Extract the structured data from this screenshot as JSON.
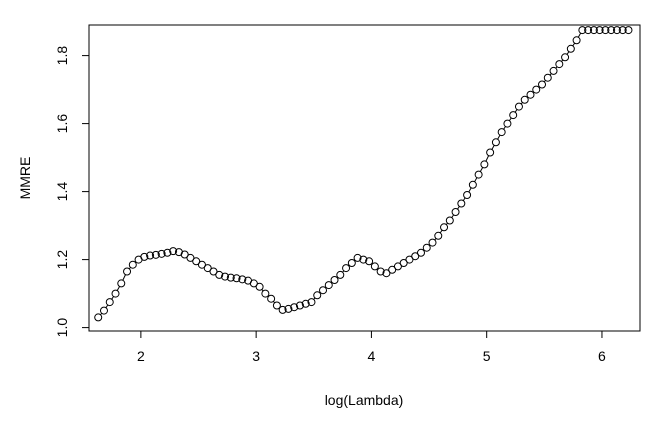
{
  "chart_data": {
    "type": "scatter",
    "title": "",
    "xlabel": "log(Lambda)",
    "ylabel": "MMRE",
    "xlim": [
      1.55,
      6.33
    ],
    "ylim": [
      0.99,
      1.89
    ],
    "grid": false,
    "legend": "none",
    "xticks": [
      2,
      3,
      4,
      5,
      6
    ],
    "yticks": [
      1.0,
      1.2,
      1.4,
      1.6,
      1.8
    ],
    "xtick_labels": [
      "2",
      "3",
      "4",
      "5",
      "6"
    ],
    "ytick_labels": [
      "1.0",
      "1.2",
      "1.4",
      "1.6",
      "1.8"
    ],
    "marker": "open-circle",
    "line": true,
    "colors": {
      "stroke": "#000000",
      "background": "#ffffff"
    },
    "x": [
      1.63,
      1.68,
      1.73,
      1.78,
      1.83,
      1.88,
      1.93,
      1.98,
      2.03,
      2.08,
      2.13,
      2.18,
      2.23,
      2.28,
      2.33,
      2.38,
      2.43,
      2.48,
      2.53,
      2.58,
      2.63,
      2.68,
      2.73,
      2.78,
      2.83,
      2.88,
      2.93,
      2.98,
      3.03,
      3.08,
      3.13,
      3.18,
      3.23,
      3.28,
      3.33,
      3.38,
      3.43,
      3.48,
      3.53,
      3.58,
      3.63,
      3.68,
      3.73,
      3.78,
      3.83,
      3.88,
      3.93,
      3.98,
      4.03,
      4.08,
      4.13,
      4.18,
      4.23,
      4.28,
      4.33,
      4.38,
      4.43,
      4.48,
      4.53,
      4.58,
      4.63,
      4.68,
      4.73,
      4.78,
      4.83,
      4.88,
      4.93,
      4.98,
      5.03,
      5.08,
      5.13,
      5.18,
      5.23,
      5.28,
      5.33,
      5.38,
      5.43,
      5.48,
      5.53,
      5.58,
      5.63,
      5.68,
      5.73,
      5.78,
      5.83,
      5.88,
      5.93,
      5.98,
      6.03,
      6.08,
      6.13,
      6.18,
      6.23
    ],
    "y": [
      1.03,
      1.05,
      1.075,
      1.1,
      1.13,
      1.165,
      1.185,
      1.2,
      1.208,
      1.212,
      1.214,
      1.217,
      1.22,
      1.225,
      1.222,
      1.215,
      1.205,
      1.195,
      1.185,
      1.175,
      1.165,
      1.155,
      1.15,
      1.147,
      1.145,
      1.142,
      1.138,
      1.13,
      1.12,
      1.1,
      1.085,
      1.065,
      1.052,
      1.055,
      1.06,
      1.065,
      1.07,
      1.075,
      1.095,
      1.11,
      1.125,
      1.14,
      1.155,
      1.175,
      1.19,
      1.205,
      1.2,
      1.195,
      1.18,
      1.165,
      1.16,
      1.17,
      1.18,
      1.19,
      1.2,
      1.21,
      1.22,
      1.235,
      1.25,
      1.27,
      1.295,
      1.315,
      1.34,
      1.365,
      1.39,
      1.42,
      1.45,
      1.48,
      1.515,
      1.545,
      1.575,
      1.6,
      1.625,
      1.65,
      1.67,
      1.685,
      1.7,
      1.715,
      1.735,
      1.755,
      1.775,
      1.795,
      1.82,
      1.845,
      1.875,
      1.875,
      1.875,
      1.875,
      1.875,
      1.875,
      1.875,
      1.875,
      1.875
    ]
  }
}
